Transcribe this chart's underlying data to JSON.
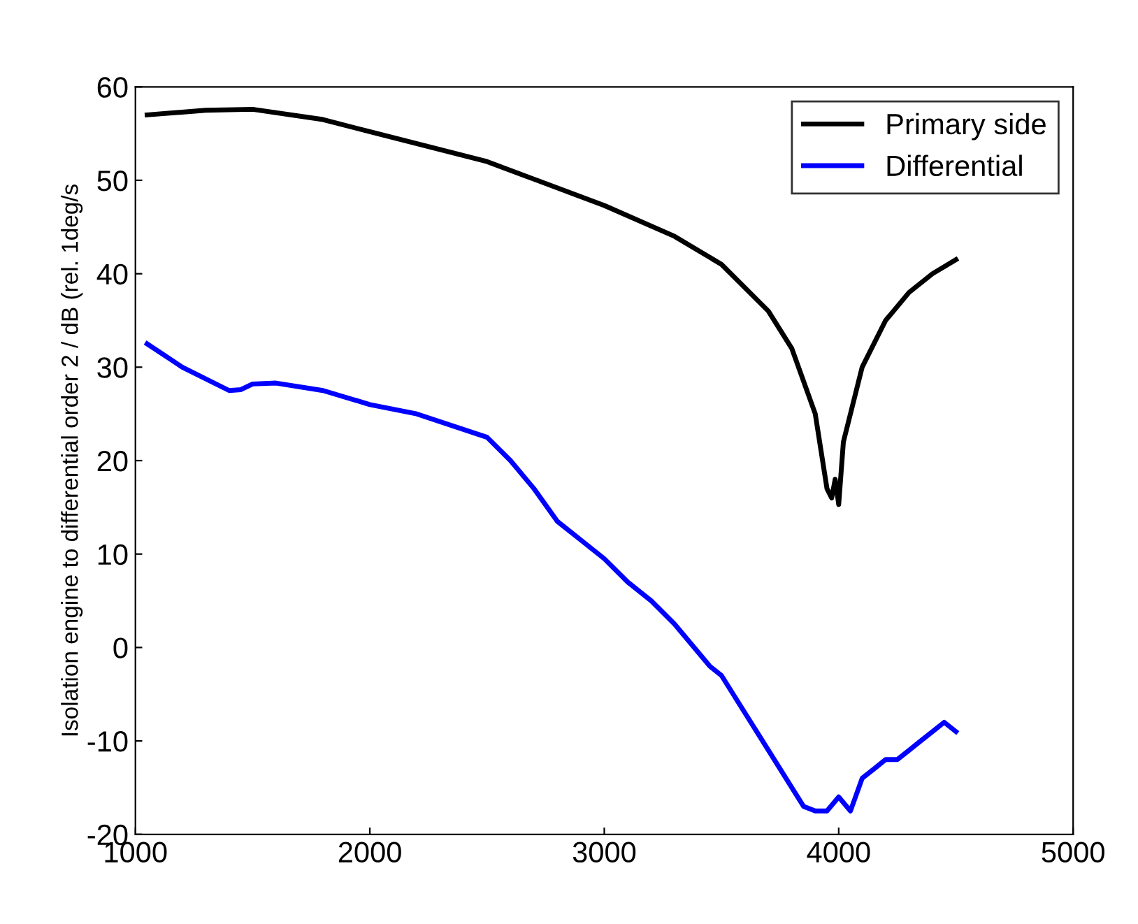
{
  "chart_data": {
    "type": "line",
    "ylabel": "Isolation engine to differential order 2 / dB (rel. 1deg/s",
    "xlim": [
      1000,
      5000
    ],
    "ylim": [
      -20,
      60
    ],
    "xticks": [
      1000,
      2000,
      3000,
      4000,
      5000
    ],
    "yticks": [
      -20,
      -10,
      0,
      10,
      20,
      30,
      40,
      50,
      60
    ],
    "grid": false,
    "legend": "top right",
    "line_style": "solid",
    "marker": "none",
    "series": [
      {
        "name": "Primary side",
        "color": "#000000",
        "x": [
          1050,
          1300,
          1500,
          1800,
          2000,
          2500,
          3000,
          3300,
          3500,
          3700,
          3800,
          3900,
          3950,
          3970,
          3985,
          4000,
          4020,
          4100,
          4200,
          4300,
          4400,
          4500
        ],
        "values": [
          57,
          57.5,
          57.6,
          56.5,
          55.2,
          52,
          47.3,
          44,
          41,
          36,
          32,
          25,
          17,
          16,
          18,
          15.3,
          22,
          30,
          35,
          38,
          40,
          41.5
        ]
      },
      {
        "name": "Differential",
        "color": "#0000ff",
        "x": [
          1050,
          1200,
          1400,
          1450,
          1500,
          1600,
          1800,
          2000,
          2200,
          2500,
          2600,
          2700,
          2800,
          2900,
          3000,
          3100,
          3200,
          3300,
          3400,
          3450,
          3500,
          3550,
          3600,
          3650,
          3700,
          3750,
          3800,
          3850,
          3900,
          3950,
          4000,
          4050,
          4100,
          4150,
          4200,
          4250,
          4300,
          4350,
          4400,
          4450,
          4500
        ],
        "values": [
          32.5,
          30,
          27.5,
          27.6,
          28.2,
          28.3,
          27.5,
          26,
          25,
          22.5,
          20,
          17,
          13.5,
          11.5,
          9.5,
          7,
          5,
          2.5,
          -0.5,
          -2,
          -3,
          -5,
          -7,
          -9,
          -11,
          -13,
          -15,
          -17,
          -17.5,
          -17.5,
          -16,
          -17.5,
          -14,
          -13,
          -12,
          -12,
          -11,
          -10,
          -9,
          -8,
          -9
        ]
      }
    ]
  }
}
